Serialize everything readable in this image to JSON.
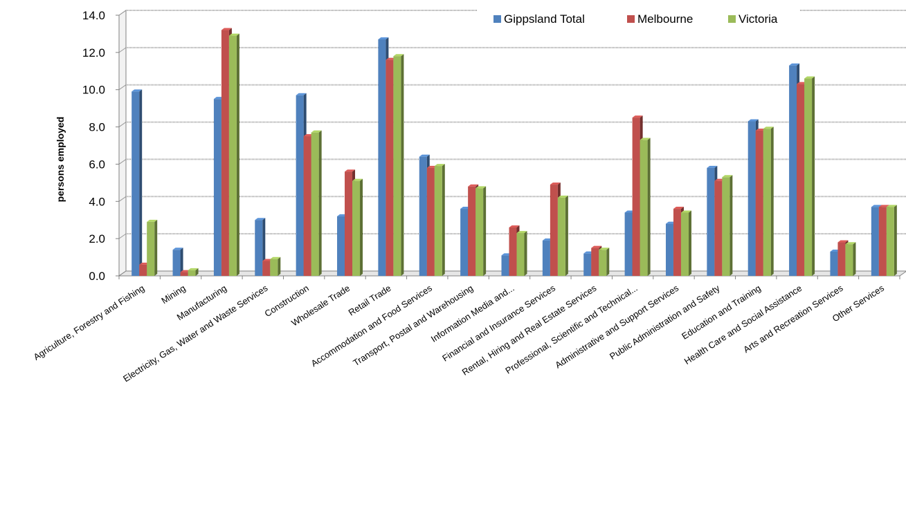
{
  "chart_data": {
    "type": "bar",
    "title": "",
    "xlabel": "",
    "ylabel": "persons employed",
    "ylim": [
      0,
      14
    ],
    "yticks": [
      "0.0",
      "2.0",
      "4.0",
      "6.0",
      "8.0",
      "10.0",
      "12.0",
      "14.0"
    ],
    "grid": true,
    "legend_position": "top-right",
    "categories": [
      "Agriculture, Forestry and Fishing",
      "Mining",
      "Manufacturing",
      "Electricity, Gas, Water and Waste Services",
      "Construction",
      "Wholesale Trade",
      "Retail Trade",
      "Accommodation and Food Services",
      "Transport, Postal and Warehousing",
      "Information Media and...",
      "Financial and Insurance Services",
      "Rental, Hiring and Real Estate Services",
      "Professional, Scientific and Technical...",
      "Administrative and Support Services",
      "Public Administration and Safety",
      "Education and Training",
      "Health Care and Social Assistance",
      "Arts and Recreation Services",
      "Other Services"
    ],
    "series": [
      {
        "name": "Gippsland Total",
        "color": "#4f81bd",
        "values": [
          9.9,
          1.4,
          9.5,
          3.0,
          9.7,
          3.2,
          12.7,
          6.4,
          3.6,
          1.1,
          1.9,
          1.2,
          3.4,
          2.8,
          5.8,
          8.3,
          11.3,
          1.3,
          3.7
        ]
      },
      {
        "name": "Melbourne",
        "color": "#c0504d",
        "values": [
          0.6,
          0.2,
          13.2,
          0.8,
          7.5,
          5.6,
          11.6,
          5.8,
          4.8,
          2.6,
          4.9,
          1.5,
          8.5,
          3.6,
          5.1,
          7.8,
          10.3,
          1.8,
          3.7
        ]
      },
      {
        "name": "Victoria",
        "color": "#9bbb59",
        "values": [
          2.9,
          0.3,
          12.9,
          0.9,
          7.7,
          5.1,
          11.8,
          5.9,
          4.7,
          2.3,
          4.2,
          1.4,
          7.3,
          3.4,
          5.3,
          7.9,
          10.6,
          1.7,
          3.7
        ]
      }
    ]
  }
}
